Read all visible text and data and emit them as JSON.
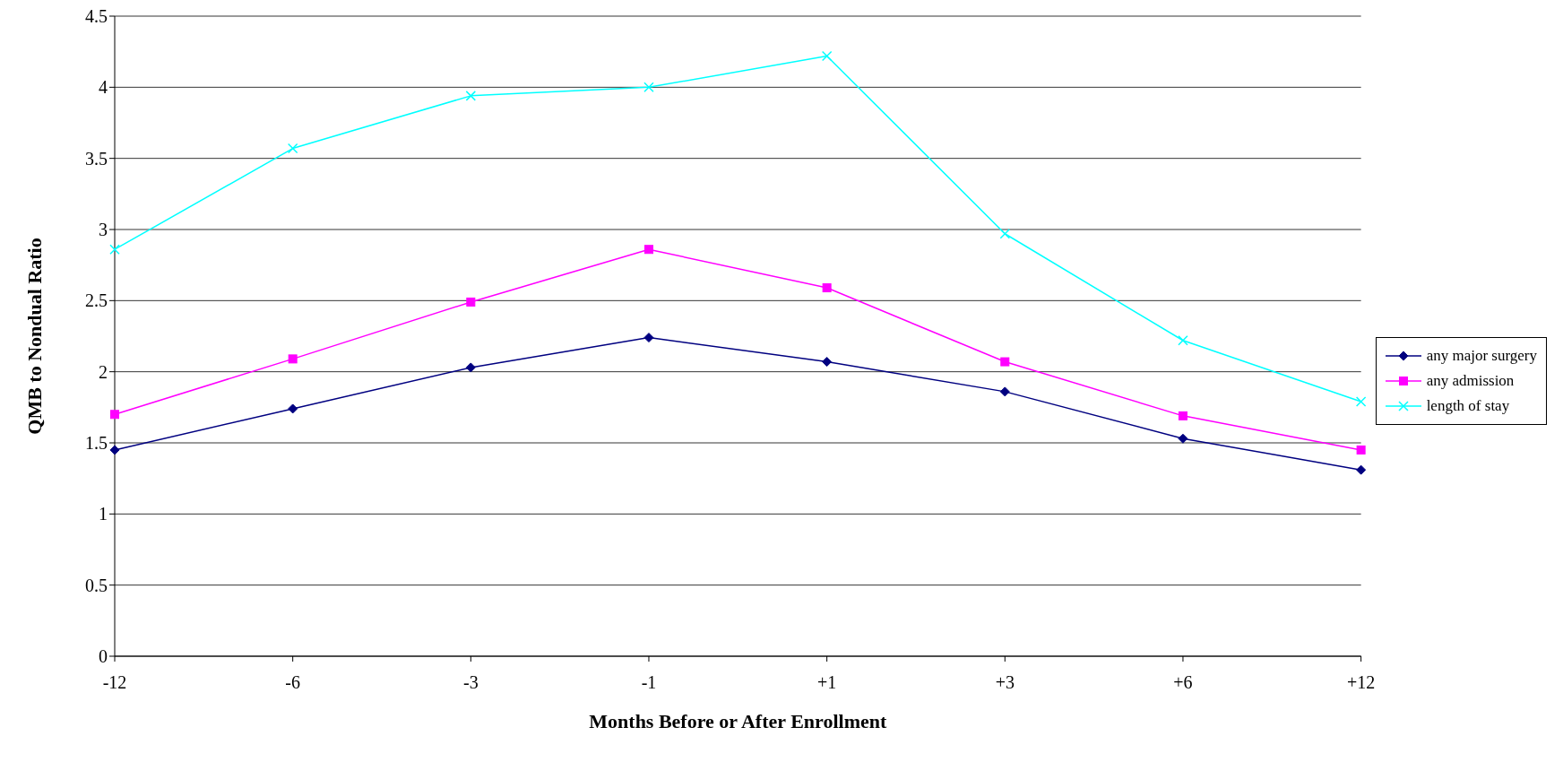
{
  "chart_data": {
    "type": "line",
    "xlabel": "Months Before or After Enrollment",
    "ylabel": "QMB to Nondual Ratio",
    "categories": [
      "-12",
      "-6",
      "-3",
      "-1",
      "+1",
      "+3",
      "+6",
      "+12"
    ],
    "series": [
      {
        "name": "any major surgery",
        "color": "#000080",
        "marker": "diamond",
        "values": [
          1.45,
          1.74,
          2.03,
          2.24,
          2.07,
          1.86,
          1.53,
          1.31
        ]
      },
      {
        "name": "any admission",
        "color": "#ff00ff",
        "marker": "square",
        "values": [
          1.7,
          2.09,
          2.49,
          2.86,
          2.59,
          2.07,
          1.69,
          1.45
        ]
      },
      {
        "name": "length of stay",
        "color": "#00ffff",
        "marker": "cross",
        "values": [
          2.86,
          3.57,
          3.94,
          4.0,
          4.22,
          2.97,
          2.22,
          1.79
        ]
      }
    ],
    "ylim": [
      0,
      4.5
    ],
    "yticks": [
      0,
      0.5,
      1,
      1.5,
      2,
      2.5,
      3,
      3.5,
      4,
      4.5
    ],
    "grid": "y",
    "legend": "right",
    "line_style": "solid"
  }
}
